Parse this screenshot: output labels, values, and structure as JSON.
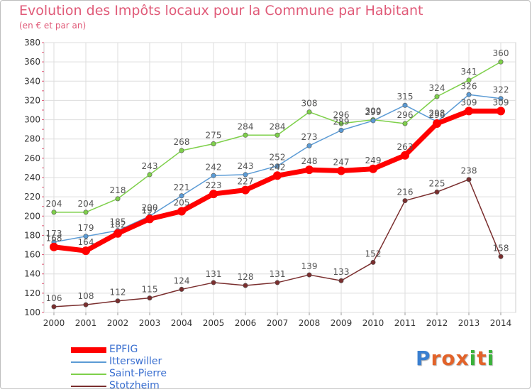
{
  "title": "Evolution des Impôts locaux pour la Commune par Habitant",
  "subtitle": "(en € et par an)",
  "logo": {
    "letters": [
      "P",
      "r",
      "o",
      "x",
      "i",
      "t",
      "i"
    ],
    "colors": [
      "#3a7fd0",
      "#e2632a",
      "#e2632a",
      "#e2632a",
      "#3ab23a",
      "#e2632a",
      "#3ab23a"
    ]
  },
  "chart_data": {
    "type": "line",
    "x": [
      "2000",
      "2001",
      "2002",
      "2003",
      "2004",
      "2005",
      "2006",
      "2007",
      "2008",
      "2009",
      "2010",
      "2011",
      "2012",
      "2013",
      "2014"
    ],
    "ylim": [
      100,
      380
    ],
    "yticks": [
      100,
      120,
      140,
      160,
      180,
      200,
      220,
      240,
      260,
      280,
      300,
      320,
      340,
      360,
      380
    ],
    "grid": true,
    "series": [
      {
        "name": "Saint-Pierre",
        "color": "#7ed04a",
        "values": [
          204,
          204,
          218,
          243,
          268,
          275,
          284,
          284,
          308,
          296,
          300,
          296,
          324,
          341,
          360
        ]
      },
      {
        "name": "Itterswiller",
        "color": "#5b9bd5",
        "values": [
          173,
          179,
          185,
          200,
          221,
          242,
          243,
          252,
          273,
          289,
          299,
          315,
          298,
          326,
          322
        ]
      },
      {
        "name": "Stotzheim",
        "color": "#7a2e2e",
        "values": [
          106,
          108,
          112,
          115,
          124,
          131,
          128,
          131,
          139,
          133,
          152,
          216,
          225,
          238,
          158
        ]
      },
      {
        "name": "EPFIG",
        "color": "#ff0000",
        "values": [
          168,
          164,
          182,
          197,
          205,
          223,
          227,
          242,
          248,
          247,
          249,
          263,
          296,
          309,
          309
        ]
      }
    ],
    "legend_order": [
      "EPFIG",
      "Itterswiller",
      "Saint-Pierre",
      "Stotzheim"
    ],
    "labels": [
      {
        "series": "EPFIG",
        "text": [
          "168",
          "164",
          "182",
          "197",
          "205",
          "223",
          "227",
          "242",
          "248",
          "247",
          "249",
          "263",
          "296",
          "309",
          "309"
        ]
      },
      {
        "series": "Itterswiller",
        "text": [
          "173",
          "179",
          "185",
          "200",
          "221",
          "242",
          "243",
          "252",
          "273",
          "289",
          "299",
          "315",
          "298",
          "326",
          "322"
        ]
      },
      {
        "series": "Saint-Pierre",
        "text": [
          "204",
          "204",
          "218",
          "243",
          "268",
          "275",
          "284",
          "284",
          "308",
          "296",
          "300",
          "296",
          "324",
          "341",
          "360"
        ]
      },
      {
        "series": "Stotzheim",
        "text": [
          "106",
          "108",
          "112",
          "115",
          "124",
          "131",
          "128",
          "131",
          "139",
          "133",
          "152",
          "216",
          "225",
          "238",
          "158"
        ]
      }
    ]
  }
}
